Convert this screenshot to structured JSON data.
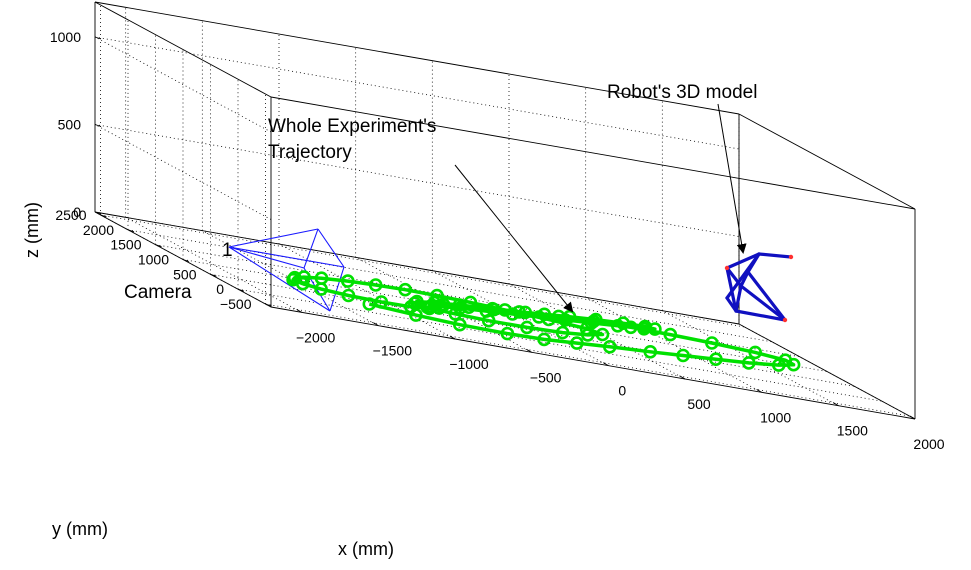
{
  "chart_data": {
    "type": "scatter",
    "title": "",
    "xlabel": "x (mm)",
    "ylabel": "y (mm)",
    "zlabel": "z (mm)",
    "xlim": [
      -2200,
      2000
    ],
    "ylim": [
      -600,
      2600
    ],
    "zlim": [
      0,
      1200
    ],
    "grid": true,
    "x_ticks": [
      "−2000",
      "−1500",
      "−1000",
      "−500",
      "0",
      "500",
      "1000",
      "1500",
      "2000"
    ],
    "y_ticks": [
      "−500",
      "0",
      "500",
      "1000",
      "1500",
      "2000",
      "2500"
    ],
    "z_ticks": [
      "0",
      "500",
      "1000"
    ],
    "annotations": {
      "trajectory": [
        "Whole Experiment's",
        "Trajectory"
      ],
      "robot": "Robot's 3D model",
      "camera": "Camera",
      "camera_id": "1"
    },
    "series": [
      {
        "name": "",
        "color": "#00e000",
        "marker": "circle",
        "x": [
          -1200,
          -950,
          -700,
          -400,
          -150,
          100,
          350,
          650,
          900,
          1150,
          1400,
          1650,
          1800,
          1800,
          1650,
          1400,
          1150,
          900,
          650,
          400,
          150,
          -100,
          -350,
          -550,
          -700,
          -750,
          -700,
          -550,
          -350,
          -100,
          150,
          350,
          500,
          450,
          250,
          0,
          -200,
          -400,
          -600,
          -800,
          -1000,
          -1200,
          -1350,
          -1450,
          -1500,
          -1480,
          -1400,
          -1250,
          -1050,
          -850,
          -700,
          -600,
          -550,
          -500,
          -300,
          -100,
          100,
          300,
          500,
          700,
          900,
          1050,
          1100,
          1000,
          800,
          600,
          400,
          200,
          0,
          -200,
          -400,
          -550,
          -650,
          -700
        ],
        "y": [
          400,
          250,
          150,
          120,
          150,
          250,
          350,
          450,
          550,
          650,
          750,
          900,
          1050,
          1200,
          1330,
          1420,
          1480,
          1500,
          1480,
          1420,
          1330,
          1230,
          1130,
          1030,
          930,
          830,
          730,
          650,
          600,
          600,
          650,
          750,
          900,
          1050,
          1180,
          1280,
          1350,
          1400,
          1420,
          1400,
          1350,
          1270,
          1170,
          1060,
          950,
          830,
          720,
          640,
          600,
          620,
          700,
          800,
          900,
          1000,
          1100,
          1200,
          1300,
          1400,
          1500,
          1580,
          1640,
          1660,
          1620,
          1540,
          1460,
          1380,
          1300,
          1220,
          1140,
          1060,
          980,
          900,
          820,
          740
        ],
        "z": [
          0,
          0,
          0,
          0,
          0,
          0,
          0,
          0,
          0,
          0,
          0,
          0,
          0,
          0,
          0,
          0,
          0,
          0,
          0,
          0,
          0,
          0,
          0,
          0,
          0,
          0,
          0,
          0,
          0,
          0,
          0,
          0,
          0,
          0,
          0,
          0,
          0,
          0,
          0,
          0,
          0,
          0,
          0,
          0,
          0,
          0,
          0,
          0,
          0,
          0,
          0,
          0,
          0,
          0,
          0,
          0,
          0,
          0,
          0,
          0,
          0,
          0,
          0,
          0,
          0,
          0,
          0,
          0,
          0,
          0,
          0,
          0,
          0,
          0
        ]
      }
    ]
  }
}
